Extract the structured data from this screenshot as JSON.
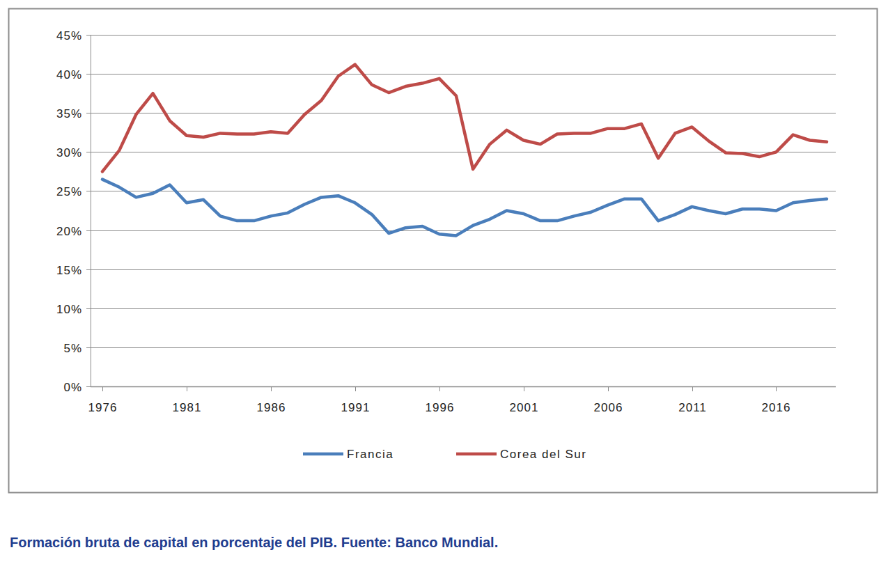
{
  "chart_data": {
    "type": "line",
    "title": "Formación bruta de capital en porcentaje del PIB. Fuente: Banco Mundial.",
    "x": [
      1976,
      1977,
      1978,
      1979,
      1980,
      1981,
      1982,
      1983,
      1984,
      1985,
      1986,
      1987,
      1988,
      1989,
      1990,
      1991,
      1992,
      1993,
      1994,
      1995,
      1996,
      1997,
      1998,
      1999,
      2000,
      2001,
      2002,
      2003,
      2004,
      2005,
      2006,
      2007,
      2008,
      2009,
      2010,
      2011,
      2012,
      2013,
      2014,
      2015,
      2016,
      2017,
      2018,
      2019
    ],
    "series": [
      {
        "name": "Francia",
        "color": "#4a7ebb",
        "values": [
          26.5,
          25.5,
          24.2,
          24.7,
          25.8,
          23.5,
          23.9,
          21.8,
          21.2,
          21.2,
          21.8,
          22.2,
          23.3,
          24.2,
          24.4,
          23.5,
          22.0,
          19.6,
          20.3,
          20.5,
          19.5,
          19.3,
          20.6,
          21.4,
          22.5,
          22.1,
          21.2,
          21.2,
          21.8,
          22.3,
          23.2,
          24.0,
          24.0,
          21.2,
          22.0,
          23.0,
          22.5,
          22.1,
          22.7,
          22.7,
          22.5,
          23.5,
          23.8,
          24.0
        ]
      },
      {
        "name": "Corea del Sur",
        "color": "#be4b48",
        "values": [
          27.5,
          30.2,
          34.8,
          37.5,
          34.0,
          32.1,
          31.9,
          32.4,
          32.3,
          32.3,
          32.6,
          32.4,
          34.8,
          36.6,
          39.7,
          41.2,
          38.6,
          37.6,
          38.4,
          38.8,
          39.4,
          37.2,
          27.8,
          31.0,
          32.8,
          31.5,
          31.0,
          32.3,
          32.4,
          32.4,
          33.0,
          33.0,
          33.6,
          29.2,
          32.4,
          33.2,
          31.4,
          29.9,
          29.8,
          29.4,
          30.0,
          32.2,
          31.5,
          31.3
        ]
      }
    ],
    "xlim": [
      1976,
      2019
    ],
    "xticks": [
      1976,
      1981,
      1986,
      1991,
      1996,
      2001,
      2006,
      2011,
      2016
    ],
    "ylim": [
      0,
      45
    ],
    "yticks": [
      {
        "value": 0,
        "label": "0%"
      },
      {
        "value": 5,
        "label": "5%"
      },
      {
        "value": 10,
        "label": "10%"
      },
      {
        "value": 15,
        "label": "15%"
      },
      {
        "value": 20,
        "label": "20%"
      },
      {
        "value": 25,
        "label": "25%"
      },
      {
        "value": 30,
        "label": "30%"
      },
      {
        "value": 35,
        "label": "35%"
      },
      {
        "value": 40,
        "label": "40%"
      },
      {
        "value": 45,
        "label": "45%"
      }
    ],
    "grid": true,
    "legend": "bottom"
  }
}
